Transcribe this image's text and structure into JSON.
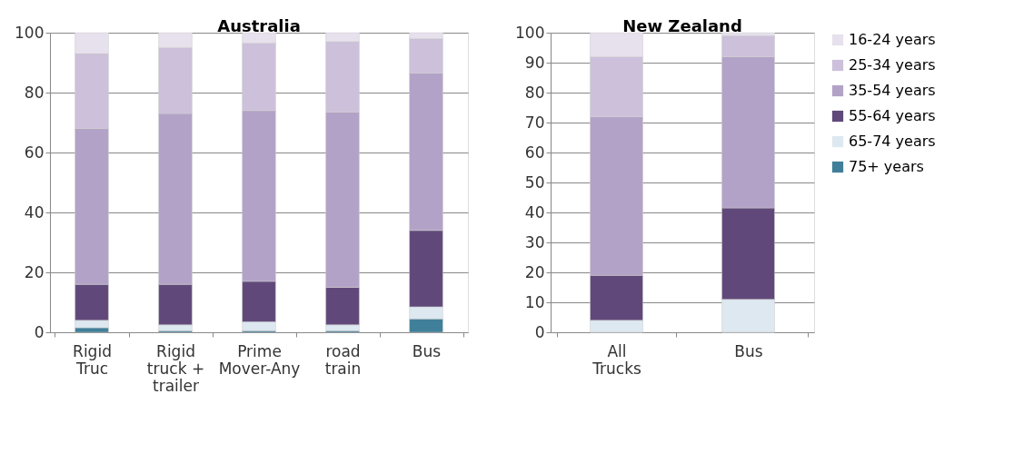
{
  "chart_data": [
    {
      "type": "bar",
      "stacked": true,
      "title": "Australia",
      "categories": [
        "Rigid Truc",
        "Rigid truck + trailer",
        "Prime Mover-Any",
        "road train",
        "Bus"
      ],
      "ylim": [
        0,
        100
      ],
      "yticks": [
        0,
        20,
        40,
        60,
        80,
        100
      ],
      "grid": "y",
      "legend": false,
      "series": [
        {
          "color": "#3f7f99",
          "values": [
            1.5,
            0.5,
            0.5,
            0.5,
            4.5
          ]
        },
        {
          "color": "#dde8f0",
          "values": [
            2.5,
            2,
            3,
            2,
            4
          ]
        },
        {
          "color": "#60497a",
          "values": [
            12,
            13.5,
            13.5,
            12.5,
            25.5
          ]
        },
        {
          "color": "#b3a2c7",
          "values": [
            52,
            57,
            57,
            58.5,
            52.5
          ]
        },
        {
          "color": "#ccc0da",
          "values": [
            25,
            22,
            22.5,
            23.5,
            11.5
          ]
        },
        {
          "color": "#e6e1ed",
          "values": [
            7,
            5,
            3.5,
            3,
            2
          ]
        }
      ]
    },
    {
      "type": "bar",
      "stacked": true,
      "title": "New Zealand",
      "categories": [
        "All Trucks",
        "Bus"
      ],
      "ylim": [
        0,
        100
      ],
      "yticks": [
        0,
        10,
        20,
        30,
        40,
        50,
        60,
        70,
        80,
        90,
        100
      ],
      "grid": "y",
      "legend": "right",
      "series": [
        {
          "name": "75+ years",
          "color": "#3f7f99",
          "values": [
            0,
            0
          ]
        },
        {
          "name": "65-74 years",
          "color": "#dde8f0",
          "values": [
            4,
            11
          ]
        },
        {
          "name": "55-64 years",
          "color": "#60497a",
          "values": [
            15,
            30.5
          ]
        },
        {
          "name": "35-54 years",
          "color": "#b3a2c7",
          "values": [
            53,
            50.5
          ]
        },
        {
          "name": "25-34 years",
          "color": "#ccc0da",
          "values": [
            20,
            7
          ]
        },
        {
          "name": "16-24 years",
          "color": "#e6e1ed",
          "values": [
            8,
            1
          ]
        }
      ]
    }
  ]
}
